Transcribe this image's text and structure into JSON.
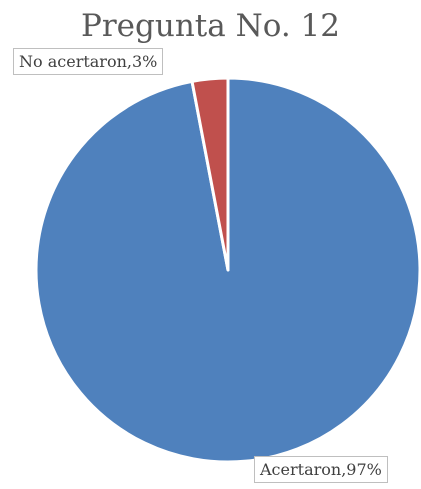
{
  "chart_data": {
    "type": "pie",
    "title": "Pregunta No. 12",
    "slices": [
      {
        "label": "Acertaron",
        "value": 97,
        "display": "Acertaron,97%",
        "color": "#4f81bd"
      },
      {
        "label": "No acertaron",
        "value": 3,
        "display": "No acertaron,3%",
        "color": "#c0504d"
      }
    ]
  }
}
